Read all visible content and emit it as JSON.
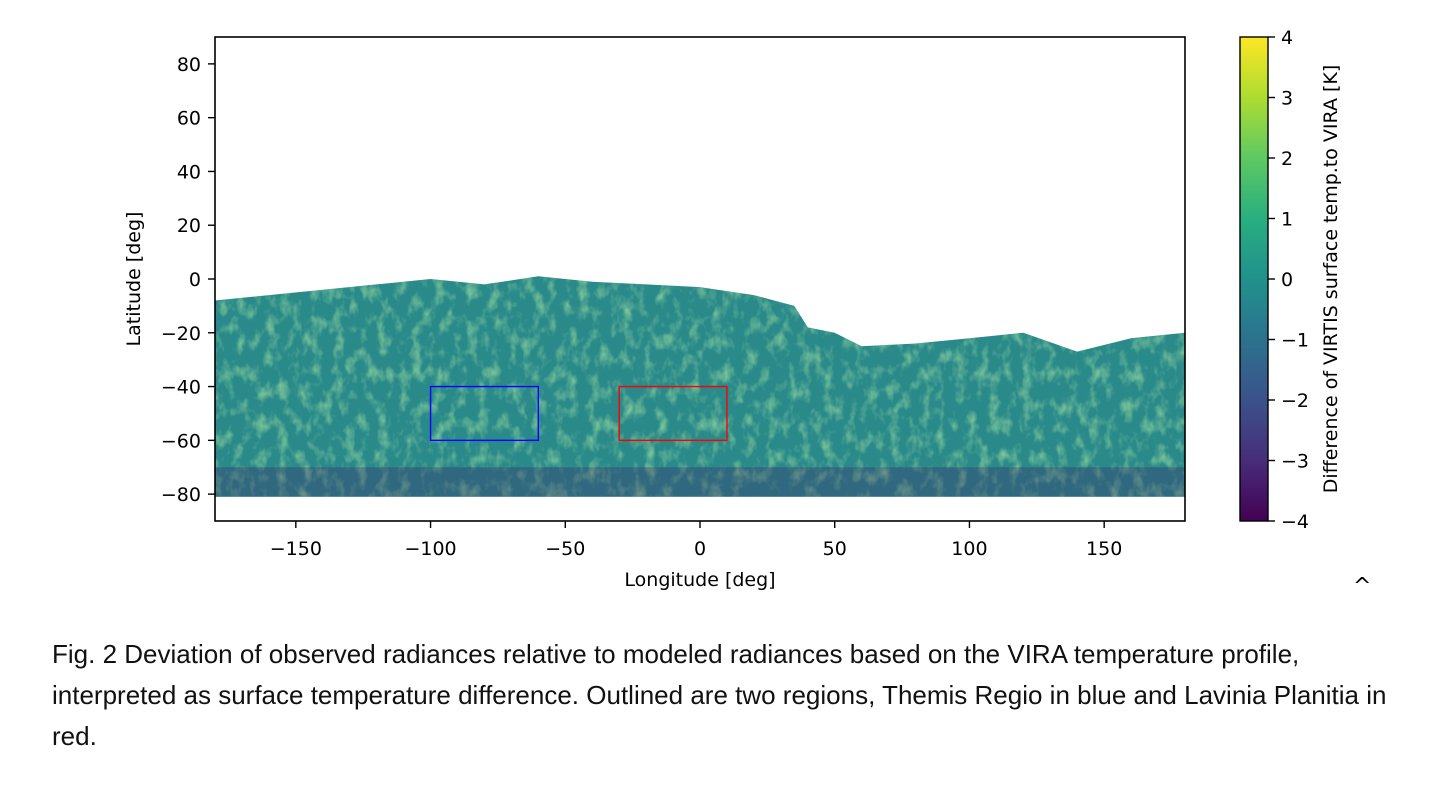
{
  "chart_data": {
    "type": "heatmap",
    "title": "",
    "xlabel": "Longitude [deg]",
    "ylabel": "Latitude [deg]",
    "xlim": [
      -180,
      180
    ],
    "ylim": [
      -90,
      90
    ],
    "x_ticks": [
      -150,
      -100,
      -50,
      0,
      50,
      100,
      150
    ],
    "x_tick_labels": [
      "−150",
      "−100",
      "−50",
      "0",
      "50",
      "100",
      "150"
    ],
    "y_ticks": [
      80,
      60,
      40,
      20,
      0,
      -20,
      -40,
      -60,
      -80
    ],
    "y_tick_labels": [
      "80",
      "60",
      "40",
      "20",
      "0",
      "−20",
      "−40",
      "−60",
      "−80"
    ],
    "colorbar": {
      "label": "Difference of VIRTIS surface temp.to VIRA [K]",
      "colormap": "viridis",
      "range": [
        -4,
        4
      ],
      "ticks": [
        4,
        3,
        2,
        1,
        0,
        -1,
        -2,
        -3,
        -4
      ],
      "tick_labels": [
        "4",
        "3",
        "2",
        "1",
        "0",
        "−1",
        "−2",
        "−3",
        "−4"
      ]
    },
    "coverage_northern_edge": [
      {
        "lon": -180,
        "lat": -8
      },
      {
        "lon": -160,
        "lat": -6
      },
      {
        "lon": -140,
        "lat": -4
      },
      {
        "lon": -120,
        "lat": -2
      },
      {
        "lon": -100,
        "lat": 0
      },
      {
        "lon": -80,
        "lat": -2
      },
      {
        "lon": -60,
        "lat": 1
      },
      {
        "lon": -40,
        "lat": -1
      },
      {
        "lon": -20,
        "lat": -2
      },
      {
        "lon": 0,
        "lat": -3
      },
      {
        "lon": 20,
        "lat": -6
      },
      {
        "lon": 35,
        "lat": -10
      },
      {
        "lon": 40,
        "lat": -18
      },
      {
        "lon": 50,
        "lat": -20
      },
      {
        "lon": 60,
        "lat": -25
      },
      {
        "lon": 80,
        "lat": -24
      },
      {
        "lon": 100,
        "lat": -22
      },
      {
        "lon": 120,
        "lat": -20
      },
      {
        "lon": 140,
        "lat": -27
      },
      {
        "lon": 160,
        "lat": -22
      },
      {
        "lon": 180,
        "lat": -20
      }
    ],
    "coverage_southern_edge_lat": -81,
    "regions": [
      {
        "name": "Themis Regio",
        "color": "#0000ff",
        "lon": [
          -100,
          -60
        ],
        "lat": [
          -60,
          -40
        ]
      },
      {
        "name": "Lavinia Planitia",
        "color": "#ff0000",
        "lon": [
          -30,
          10
        ],
        "lat": [
          -60,
          -40
        ]
      }
    ]
  },
  "caption": "Fig. 2 Deviation of observed radiances relative to modeled radiances based on the VIRA temperature profile, interpreted as surface temperature difference. Outlined are two regions, Themis Regio in blue and Lavinia Planitia in red.",
  "caret": "^"
}
